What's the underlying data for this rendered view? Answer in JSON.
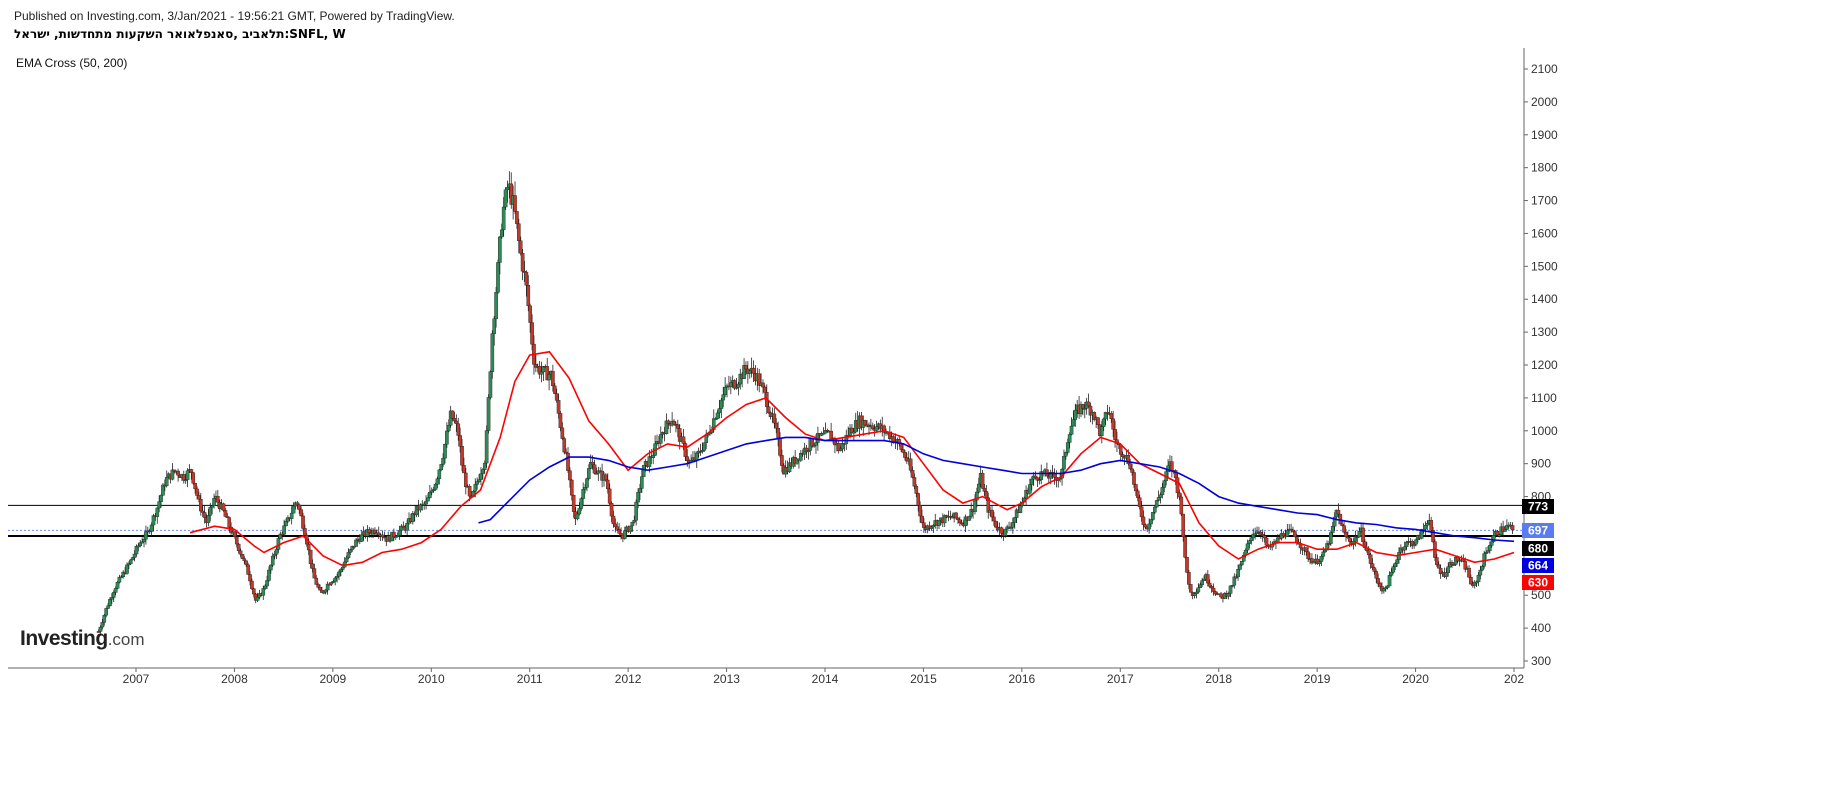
{
  "header": {
    "published_line": "Published on Investing.com, 3/Jan/2021 - 19:56:21 GMT, Powered by TradingView.",
    "chart_title": "תלאביב ,סאנפלאואר השקעות מתחדשות, ישראל:SNFL, W",
    "indicator_label": "EMA Cross (50, 200)"
  },
  "logo": {
    "main": "Investing",
    "suffix": ".com"
  },
  "colors": {
    "candle_up": "#2e8b57",
    "candle_down": "#c0392b",
    "ema50": "#ff0000",
    "ema200": "#0000dd",
    "hline": "#000000",
    "last_price_line": "#6b8cff",
    "axis": "#666666"
  },
  "chart_data": {
    "type": "line",
    "interval": "weekly",
    "x_axis": {
      "ticks": [
        "2007",
        "2008",
        "2009",
        "2010",
        "2011",
        "2012",
        "2013",
        "2014",
        "2015",
        "2016",
        "2017",
        "2018",
        "2019",
        "2020",
        "202"
      ],
      "range": [
        2005.8,
        2021.1
      ]
    },
    "y_axis": {
      "ticks": [
        "300",
        "400",
        "500",
        "600",
        "700",
        "800",
        "900",
        "1000",
        "1100",
        "1200",
        "1300",
        "1400",
        "1500",
        "1600",
        "1700",
        "1800",
        "1900",
        "2000",
        "2100"
      ],
      "ylim": [
        300,
        2120
      ],
      "position": "right"
    },
    "price_series": [
      [
        2006.62,
        390
      ],
      [
        2006.7,
        460
      ],
      [
        2006.78,
        520
      ],
      [
        2006.86,
        560
      ],
      [
        2006.94,
        600
      ],
      [
        2007.04,
        660
      ],
      [
        2007.12,
        690
      ],
      [
        2007.22,
        770
      ],
      [
        2007.3,
        850
      ],
      [
        2007.4,
        880
      ],
      [
        2007.48,
        860
      ],
      [
        2007.56,
        880
      ],
      [
        2007.64,
        780
      ],
      [
        2007.72,
        720
      ],
      [
        2007.8,
        800
      ],
      [
        2007.88,
        760
      ],
      [
        2007.96,
        700
      ],
      [
        2008.05,
        640
      ],
      [
        2008.15,
        560
      ],
      [
        2008.22,
        480
      ],
      [
        2008.3,
        520
      ],
      [
        2008.38,
        600
      ],
      [
        2008.46,
        680
      ],
      [
        2008.55,
        730
      ],
      [
        2008.63,
        790
      ],
      [
        2008.72,
        690
      ],
      [
        2008.8,
        560
      ],
      [
        2008.88,
        500
      ],
      [
        2008.96,
        540
      ],
      [
        2009.05,
        560
      ],
      [
        2009.15,
        620
      ],
      [
        2009.25,
        670
      ],
      [
        2009.35,
        690
      ],
      [
        2009.45,
        700
      ],
      [
        2009.55,
        670
      ],
      [
        2009.65,
        690
      ],
      [
        2009.75,
        710
      ],
      [
        2009.85,
        760
      ],
      [
        2009.95,
        780
      ],
      [
        2010.05,
        850
      ],
      [
        2010.12,
        930
      ],
      [
        2010.2,
        1050
      ],
      [
        2010.27,
        1000
      ],
      [
        2010.32,
        880
      ],
      [
        2010.4,
        780
      ],
      [
        2010.47,
        850
      ],
      [
        2010.55,
        920
      ],
      [
        2010.62,
        1300
      ],
      [
        2010.68,
        1500
      ],
      [
        2010.72,
        1650
      ],
      [
        2010.78,
        1750
      ],
      [
        2010.84,
        1680
      ],
      [
        2010.9,
        1550
      ],
      [
        2010.96,
        1450
      ],
      [
        2011.05,
        1200
      ],
      [
        2011.12,
        1180
      ],
      [
        2011.22,
        1170
      ],
      [
        2011.3,
        1040
      ],
      [
        2011.38,
        900
      ],
      [
        2011.46,
        720
      ],
      [
        2011.55,
        830
      ],
      [
        2011.62,
        900
      ],
      [
        2011.7,
        870
      ],
      [
        2011.78,
        850
      ],
      [
        2011.86,
        700
      ],
      [
        2011.94,
        680
      ],
      [
        2012.05,
        720
      ],
      [
        2012.15,
        880
      ],
      [
        2012.25,
        930
      ],
      [
        2012.35,
        1000
      ],
      [
        2012.45,
        1040
      ],
      [
        2012.55,
        960
      ],
      [
        2012.62,
        900
      ],
      [
        2012.7,
        920
      ],
      [
        2012.8,
        980
      ],
      [
        2012.9,
        1060
      ],
      [
        2013.0,
        1130
      ],
      [
        2013.1,
        1150
      ],
      [
        2013.2,
        1190
      ],
      [
        2013.3,
        1170
      ],
      [
        2013.4,
        1100
      ],
      [
        2013.5,
        1000
      ],
      [
        2013.58,
        880
      ],
      [
        2013.66,
        900
      ],
      [
        2013.75,
        930
      ],
      [
        2013.85,
        960
      ],
      [
        2013.95,
        980
      ],
      [
        2014.05,
        990
      ],
      [
        2014.15,
        940
      ],
      [
        2014.25,
        1000
      ],
      [
        2014.35,
        1030
      ],
      [
        2014.45,
        1020
      ],
      [
        2014.55,
        1010
      ],
      [
        2014.65,
        990
      ],
      [
        2014.75,
        960
      ],
      [
        2014.85,
        900
      ],
      [
        2014.92,
        820
      ],
      [
        2015.0,
        700
      ],
      [
        2015.1,
        720
      ],
      [
        2015.2,
        730
      ],
      [
        2015.3,
        740
      ],
      [
        2015.4,
        720
      ],
      [
        2015.5,
        760
      ],
      [
        2015.58,
        860
      ],
      [
        2015.66,
        760
      ],
      [
        2015.74,
        710
      ],
      [
        2015.82,
        690
      ],
      [
        2015.9,
        720
      ],
      [
        2016.0,
        780
      ],
      [
        2016.1,
        850
      ],
      [
        2016.2,
        870
      ],
      [
        2016.3,
        860
      ],
      [
        2016.4,
        860
      ],
      [
        2016.48,
        1000
      ],
      [
        2016.56,
        1060
      ],
      [
        2016.64,
        1080
      ],
      [
        2016.72,
        1060
      ],
      [
        2016.8,
        990
      ],
      [
        2016.88,
        1070
      ],
      [
        2016.96,
        960
      ],
      [
        2017.04,
        930
      ],
      [
        2017.1,
        900
      ],
      [
        2017.18,
        780
      ],
      [
        2017.26,
        700
      ],
      [
        2017.34,
        760
      ],
      [
        2017.42,
        820
      ],
      [
        2017.5,
        900
      ],
      [
        2017.56,
        860
      ],
      [
        2017.62,
        760
      ],
      [
        2017.66,
        600
      ],
      [
        2017.72,
        500
      ],
      [
        2017.78,
        520
      ],
      [
        2017.86,
        560
      ],
      [
        2017.94,
        520
      ],
      [
        2018.02,
        490
      ],
      [
        2018.1,
        510
      ],
      [
        2018.18,
        560
      ],
      [
        2018.26,
        620
      ],
      [
        2018.34,
        690
      ],
      [
        2018.42,
        700
      ],
      [
        2018.5,
        640
      ],
      [
        2018.58,
        660
      ],
      [
        2018.66,
        690
      ],
      [
        2018.74,
        690
      ],
      [
        2018.82,
        660
      ],
      [
        2018.9,
        620
      ],
      [
        2018.98,
        600
      ],
      [
        2019.06,
        620
      ],
      [
        2019.14,
        680
      ],
      [
        2019.2,
        760
      ],
      [
        2019.28,
        680
      ],
      [
        2019.36,
        660
      ],
      [
        2019.44,
        700
      ],
      [
        2019.52,
        620
      ],
      [
        2019.6,
        550
      ],
      [
        2019.68,
        510
      ],
      [
        2019.76,
        570
      ],
      [
        2019.84,
        640
      ],
      [
        2019.92,
        660
      ],
      [
        2020.0,
        660
      ],
      [
        2020.08,
        700
      ],
      [
        2020.14,
        740
      ],
      [
        2020.2,
        600
      ],
      [
        2020.28,
        560
      ],
      [
        2020.36,
        600
      ],
      [
        2020.44,
        610
      ],
      [
        2020.52,
        580
      ],
      [
        2020.58,
        520
      ],
      [
        2020.64,
        560
      ],
      [
        2020.7,
        620
      ],
      [
        2020.76,
        660
      ],
      [
        2020.82,
        690
      ],
      [
        2020.88,
        700
      ],
      [
        2020.94,
        710
      ],
      [
        2021.0,
        697
      ]
    ],
    "series": [
      {
        "name": "EMA 50",
        "color": "#ff0000",
        "values": [
          [
            2007.55,
            690
          ],
          [
            2007.8,
            710
          ],
          [
            2008.0,
            700
          ],
          [
            2008.2,
            650
          ],
          [
            2008.3,
            630
          ],
          [
            2008.5,
            660
          ],
          [
            2008.7,
            680
          ],
          [
            2008.9,
            620
          ],
          [
            2009.1,
            590
          ],
          [
            2009.3,
            600
          ],
          [
            2009.5,
            630
          ],
          [
            2009.7,
            640
          ],
          [
            2009.9,
            660
          ],
          [
            2010.1,
            700
          ],
          [
            2010.3,
            770
          ],
          [
            2010.5,
            820
          ],
          [
            2010.7,
            980
          ],
          [
            2010.85,
            1150
          ],
          [
            2011.0,
            1230
          ],
          [
            2011.2,
            1240
          ],
          [
            2011.4,
            1160
          ],
          [
            2011.6,
            1030
          ],
          [
            2011.8,
            960
          ],
          [
            2012.0,
            880
          ],
          [
            2012.2,
            930
          ],
          [
            2012.4,
            960
          ],
          [
            2012.6,
            950
          ],
          [
            2012.8,
            990
          ],
          [
            2013.0,
            1040
          ],
          [
            2013.2,
            1080
          ],
          [
            2013.4,
            1100
          ],
          [
            2013.6,
            1040
          ],
          [
            2013.8,
            990
          ],
          [
            2014.0,
            970
          ],
          [
            2014.2,
            980
          ],
          [
            2014.4,
            990
          ],
          [
            2014.6,
            1000
          ],
          [
            2014.8,
            980
          ],
          [
            2015.0,
            900
          ],
          [
            2015.2,
            820
          ],
          [
            2015.4,
            780
          ],
          [
            2015.6,
            800
          ],
          [
            2015.85,
            760
          ],
          [
            2016.0,
            780
          ],
          [
            2016.2,
            830
          ],
          [
            2016.4,
            860
          ],
          [
            2016.6,
            930
          ],
          [
            2016.8,
            980
          ],
          [
            2017.0,
            960
          ],
          [
            2017.2,
            900
          ],
          [
            2017.4,
            870
          ],
          [
            2017.6,
            840
          ],
          [
            2017.8,
            720
          ],
          [
            2018.0,
            650
          ],
          [
            2018.2,
            610
          ],
          [
            2018.4,
            640
          ],
          [
            2018.6,
            660
          ],
          [
            2018.8,
            660
          ],
          [
            2019.0,
            640
          ],
          [
            2019.2,
            640
          ],
          [
            2019.4,
            660
          ],
          [
            2019.6,
            630
          ],
          [
            2019.8,
            620
          ],
          [
            2020.0,
            630
          ],
          [
            2020.2,
            640
          ],
          [
            2020.4,
            620
          ],
          [
            2020.6,
            600
          ],
          [
            2020.8,
            610
          ],
          [
            2021.0,
            630
          ]
        ]
      },
      {
        "name": "EMA 200",
        "color": "#0000dd",
        "values": [
          [
            2010.48,
            720
          ],
          [
            2010.6,
            730
          ],
          [
            2010.8,
            790
          ],
          [
            2011.0,
            850
          ],
          [
            2011.2,
            890
          ],
          [
            2011.4,
            920
          ],
          [
            2011.6,
            920
          ],
          [
            2011.8,
            910
          ],
          [
            2012.0,
            890
          ],
          [
            2012.2,
            880
          ],
          [
            2012.4,
            890
          ],
          [
            2012.6,
            900
          ],
          [
            2012.8,
            920
          ],
          [
            2013.0,
            940
          ],
          [
            2013.2,
            960
          ],
          [
            2013.4,
            970
          ],
          [
            2013.6,
            980
          ],
          [
            2013.8,
            980
          ],
          [
            2014.0,
            970
          ],
          [
            2014.2,
            970
          ],
          [
            2014.4,
            970
          ],
          [
            2014.6,
            970
          ],
          [
            2014.8,
            960
          ],
          [
            2015.0,
            930
          ],
          [
            2015.2,
            910
          ],
          [
            2015.4,
            900
          ],
          [
            2015.6,
            890
          ],
          [
            2015.8,
            880
          ],
          [
            2016.0,
            870
          ],
          [
            2016.2,
            870
          ],
          [
            2016.4,
            870
          ],
          [
            2016.6,
            880
          ],
          [
            2016.8,
            900
          ],
          [
            2017.0,
            910
          ],
          [
            2017.2,
            900
          ],
          [
            2017.4,
            890
          ],
          [
            2017.6,
            870
          ],
          [
            2017.8,
            840
          ],
          [
            2018.0,
            800
          ],
          [
            2018.2,
            780
          ],
          [
            2018.4,
            770
          ],
          [
            2018.6,
            760
          ],
          [
            2018.8,
            750
          ],
          [
            2019.0,
            745
          ],
          [
            2019.2,
            730
          ],
          [
            2019.4,
            720
          ],
          [
            2019.6,
            715
          ],
          [
            2019.8,
            705
          ],
          [
            2020.0,
            700
          ],
          [
            2020.2,
            690
          ],
          [
            2020.4,
            680
          ],
          [
            2020.6,
            675
          ],
          [
            2020.8,
            668
          ],
          [
            2021.0,
            664
          ]
        ]
      }
    ],
    "horizontal_lines": [
      {
        "value": 773,
        "style": "solid-thin"
      },
      {
        "value": 680,
        "style": "solid-thick"
      },
      {
        "value": 697,
        "style": "dotted"
      }
    ],
    "price_labels": [
      {
        "value": 773,
        "text": "773",
        "bg": "#000000",
        "fg": "#ffffff"
      },
      {
        "value": 697,
        "text": "697",
        "bg": "#5b7bf0",
        "fg": "#ffffff"
      },
      {
        "value": 680,
        "text": "680",
        "bg": "#000000",
        "fg": "#ffffff"
      },
      {
        "value": 664,
        "text": "664",
        "bg": "#0000dd",
        "fg": "#ffffff"
      },
      {
        "value": 630,
        "text": "630",
        "bg": "#ff0000",
        "fg": "#ffffff"
      }
    ],
    "grid": false,
    "legend": "none"
  }
}
